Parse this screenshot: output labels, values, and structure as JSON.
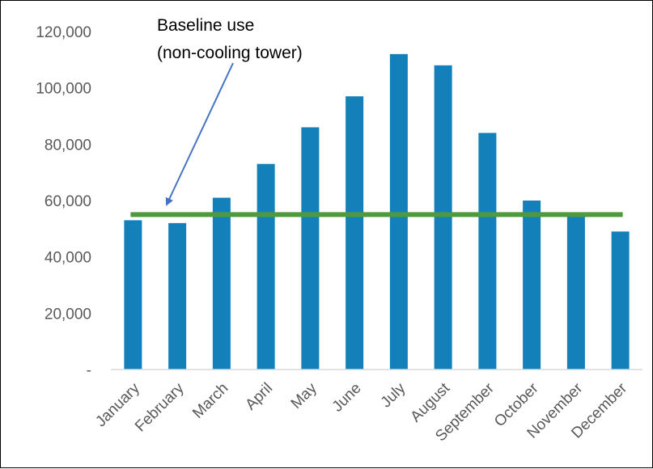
{
  "chart_data": {
    "type": "bar",
    "categories": [
      "January",
      "February",
      "March",
      "April",
      "May",
      "June",
      "July",
      "August",
      "September",
      "October",
      "November",
      "December"
    ],
    "series": [
      {
        "values": [
          53000,
          52000,
          61000,
          73000,
          86000,
          97000,
          112000,
          108000,
          84000,
          60000,
          55000,
          49000
        ],
        "color": "#1380B9"
      }
    ],
    "baseline": {
      "value": 55000,
      "color": "#4E9A3C"
    },
    "ylim": [
      0,
      120000
    ],
    "yticks": [
      0,
      20000,
      40000,
      60000,
      80000,
      100000,
      120000
    ],
    "ytick_labels": [
      "-",
      "20,000",
      "40,000",
      "60,000",
      "80,000",
      "100,000",
      "120,000"
    ],
    "grid": false,
    "annotation": {
      "lines": [
        "Baseline use",
        "(non-cooling tower)"
      ],
      "arrow_color": "#4472C4"
    },
    "title": "",
    "xlabel": "",
    "ylabel": ""
  }
}
